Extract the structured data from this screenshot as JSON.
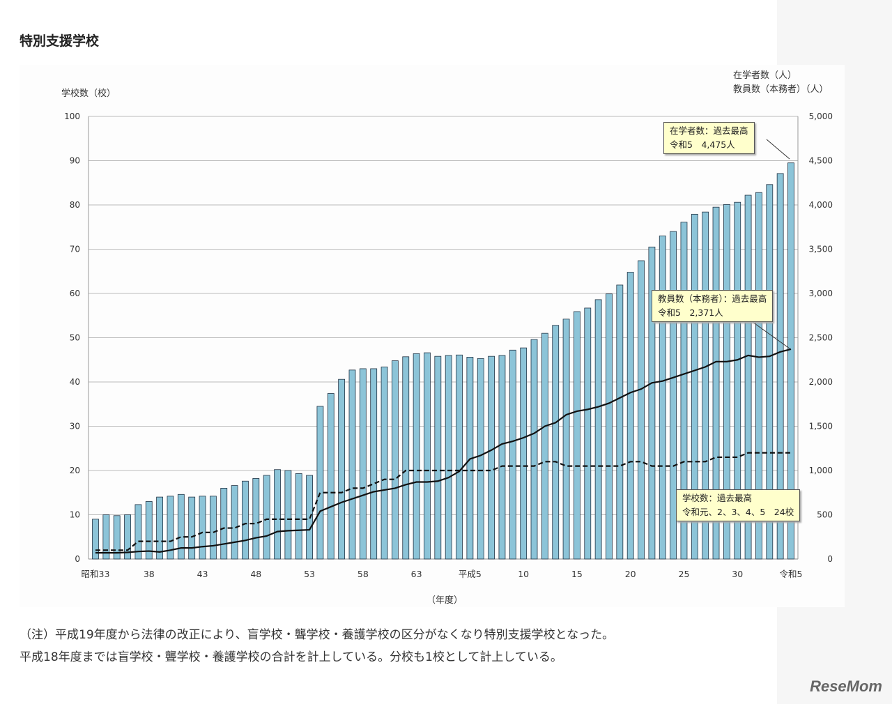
{
  "title": "特別支援学校",
  "chart_data": {
    "type": "bar+line",
    "title": "",
    "xlabel": "（年度）",
    "ylabel_left": "学校数（校）",
    "ylabel_right": [
      "在学者数（人）",
      "教員数（本務者）（人）"
    ],
    "ylim_left": [
      0,
      100
    ],
    "ylim_right": [
      0,
      5000
    ],
    "yticks_left": [
      "0",
      "10",
      "20",
      "30",
      "40",
      "50",
      "60",
      "70",
      "80",
      "90",
      "100"
    ],
    "yticks_right": [
      "0",
      "500",
      "1,000",
      "1,500",
      "2,000",
      "2,500",
      "3,000",
      "3,500",
      "4,000",
      "4,500",
      "5,000"
    ],
    "xtick_labels": [
      "昭和33",
      "38",
      "43",
      "48",
      "53",
      "58",
      "63",
      "平成5",
      "10",
      "15",
      "20",
      "25",
      "30",
      "令和5"
    ],
    "grid": true,
    "years": [
      "S33",
      "S34",
      "S35",
      "S36",
      "S37",
      "S38",
      "S39",
      "S40",
      "S41",
      "S42",
      "S43",
      "S44",
      "S45",
      "S46",
      "S47",
      "S48",
      "S49",
      "S50",
      "S51",
      "S52",
      "S53",
      "S54",
      "S55",
      "S56",
      "S57",
      "S58",
      "S59",
      "S60",
      "S61",
      "S62",
      "S63",
      "H1",
      "H2",
      "H3",
      "H4",
      "H5",
      "H6",
      "H7",
      "H8",
      "H9",
      "H10",
      "H11",
      "H12",
      "H13",
      "H14",
      "H15",
      "H16",
      "H17",
      "H18",
      "H19",
      "H20",
      "H21",
      "H22",
      "H23",
      "H24",
      "H25",
      "H26",
      "H27",
      "H28",
      "H29",
      "H30",
      "R1",
      "R2",
      "R3",
      "R4",
      "R5"
    ],
    "series": [
      {
        "kind": "bar",
        "axis": "right",
        "color": "#8cc4d8",
        "values": [
          450,
          500,
          490,
          500,
          615,
          650,
          700,
          710,
          730,
          700,
          710,
          710,
          800,
          830,
          880,
          910,
          945,
          1010,
          1000,
          965,
          945,
          1725,
          1870,
          2030,
          2135,
          2150,
          2150,
          2170,
          2240,
          2285,
          2320,
          2330,
          2290,
          2300,
          2305,
          2280,
          2265,
          2290,
          2300,
          2360,
          2385,
          2480,
          2550,
          2640,
          2710,
          2795,
          2835,
          2930,
          2995,
          3095,
          3240,
          3370,
          3525,
          3650,
          3700,
          3805,
          3895,
          3920,
          3975,
          4005,
          4030,
          4110,
          4140,
          4230,
          4355,
          4475
        ]
      },
      {
        "kind": "line",
        "style": "solid",
        "axis": "right",
        "color": "#111",
        "values": [
          70,
          70,
          70,
          75,
          85,
          90,
          80,
          100,
          125,
          125,
          140,
          150,
          170,
          190,
          210,
          240,
          260,
          310,
          320,
          325,
          330,
          540,
          590,
          640,
          680,
          720,
          760,
          780,
          800,
          840,
          870,
          870,
          880,
          920,
          990,
          1130,
          1170,
          1230,
          1300,
          1330,
          1370,
          1420,
          1500,
          1540,
          1630,
          1670,
          1690,
          1720,
          1760,
          1820,
          1880,
          1920,
          1990,
          2010,
          2050,
          2090,
          2130,
          2170,
          2230,
          2230,
          2250,
          2300,
          2280,
          2290,
          2340,
          2371
        ]
      },
      {
        "kind": "line",
        "style": "dashed",
        "axis": "left",
        "color": "#111",
        "values": [
          2,
          2,
          2,
          2,
          4,
          4,
          4,
          4,
          5,
          5,
          6,
          6,
          7,
          7,
          8,
          8,
          9,
          9,
          9,
          9,
          9,
          15,
          15,
          15,
          16,
          16,
          17,
          18,
          18,
          20,
          20,
          20,
          20,
          20,
          20,
          20,
          20,
          20,
          21,
          21,
          21,
          21,
          22,
          22,
          21,
          21,
          21,
          21,
          21,
          21,
          22,
          22,
          21,
          21,
          21,
          22,
          22,
          22,
          23,
          23,
          23,
          24,
          24,
          24,
          24,
          24
        ]
      }
    ],
    "annotations": [
      {
        "line1": "在学者数：過去最高",
        "line2": "令和5　4,475人"
      },
      {
        "line1": "教員数（本務者）：過去最高",
        "line2": "令和5　2,371人"
      },
      {
        "line1": "学校数：過去最高",
        "line2": "令和元、2、3、4、5　24校"
      }
    ]
  },
  "notes": [
    "（注）平成19年度から法律の改正により、盲学校・聾学校・養護学校の区分がなくなり特別支援学校となった。",
    "平成18年度までは盲学校・聾学校・養護学校の合計を計上している。分校も1校として計上している。"
  ],
  "logo": "ReseMom"
}
